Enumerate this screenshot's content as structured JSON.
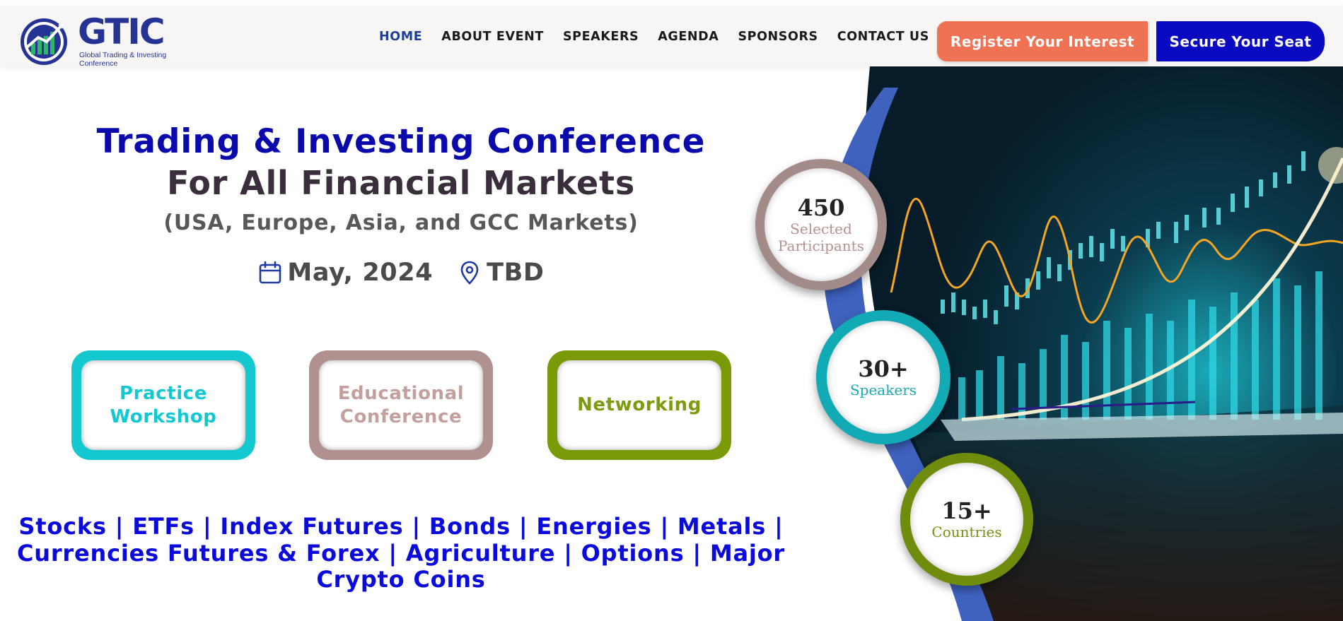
{
  "header": {
    "logo": {
      "name": "GTIC",
      "tagline": "Global Trading & Investing Conference"
    },
    "nav": [
      {
        "label": "HOME",
        "active": true
      },
      {
        "label": "ABOUT EVENT",
        "active": false
      },
      {
        "label": "SPEAKERS",
        "active": false
      },
      {
        "label": "AGENDA",
        "active": false
      },
      {
        "label": "SPONSORS",
        "active": false
      },
      {
        "label": "CONTACT US",
        "active": false
      }
    ],
    "register_label": "Register Your Interest",
    "secure_label": "Secure Your Seat"
  },
  "hero": {
    "title": "Trading & Investing Conference",
    "subtitle": "For All Financial Markets",
    "markets_note": "(USA, Europe, Asia, and GCC Markets)",
    "date": "May, 2024",
    "location": "TBD"
  },
  "cards": [
    {
      "label": "Practice Workshop"
    },
    {
      "label": "Educational Conference"
    },
    {
      "label": "Networking"
    }
  ],
  "markets_list": "Stocks | ETFs | Index Futures | Bonds | Energies | Metals | Currencies Futures & Forex | Agriculture | Options | Major Crypto Coins",
  "stats": [
    {
      "number": "450",
      "label": "Selected Participants"
    },
    {
      "number": "30+",
      "label": "Speakers"
    },
    {
      "number": "15+",
      "label": "Countries"
    }
  ],
  "colors": {
    "brand_navy": "#253494",
    "primary_blue": "#0a0aac",
    "register_orange": "#ef7254",
    "secure_blue": "#0a0ac2",
    "teal": "#13c8ce",
    "rose": "#b0918f",
    "olive": "#7b9a0a"
  },
  "icons": [
    "logo-globe-icon",
    "calendar-icon",
    "map-pin-icon"
  ]
}
